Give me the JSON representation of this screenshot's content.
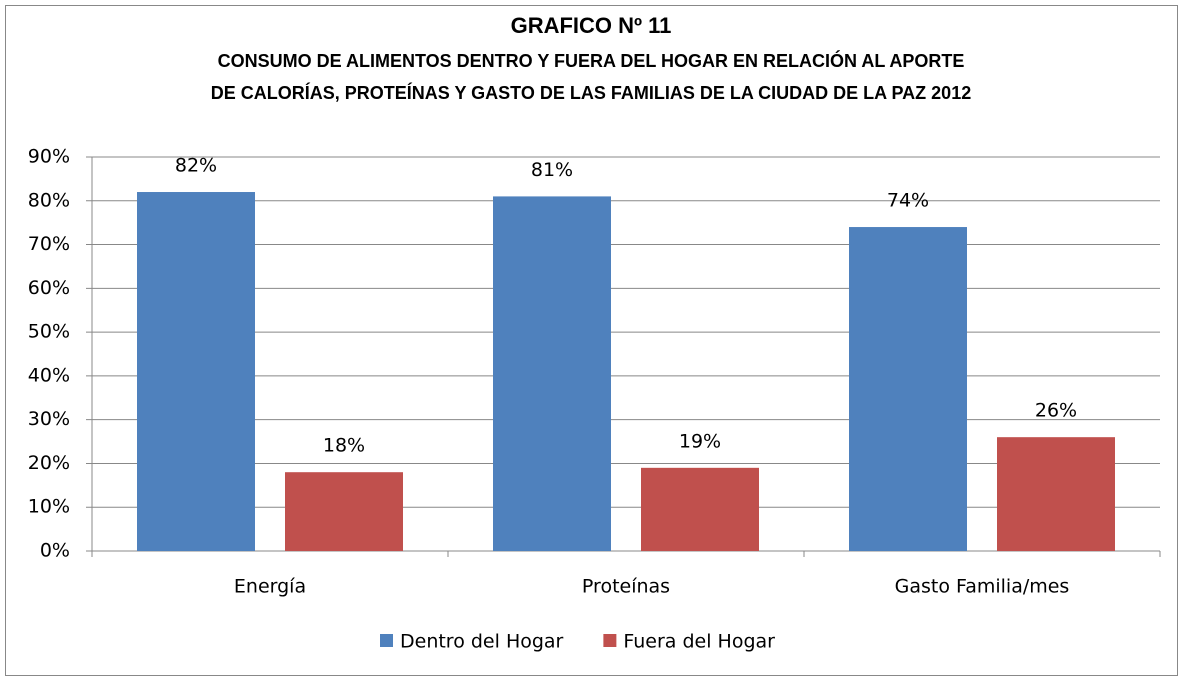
{
  "chart_data": {
    "type": "bar",
    "title": "GRAFICO Nº 11",
    "subtitle": [
      "CONSUMO DE ALIMENTOS DENTRO Y FUERA DEL HOGAR EN RELACIÓN AL APORTE",
      "DE CALORÍAS, PROTEÍNAS Y GASTO DE LAS FAMILIAS DE LA CIUDAD DE LA PAZ 2012"
    ],
    "categories": [
      "Energía",
      "Proteínas",
      "Gasto Familia/mes"
    ],
    "series": [
      {
        "name": "Dentro del Hogar",
        "color": "#4f81bd",
        "values": [
          82,
          81,
          74
        ],
        "value_labels": [
          "82%",
          "81%",
          "74%"
        ]
      },
      {
        "name": "Fuera del Hogar",
        "color": "#c0504d",
        "values": [
          18,
          19,
          26
        ],
        "value_labels": [
          "18%",
          "19%",
          "26%"
        ]
      }
    ],
    "ylim": [
      0,
      90
    ],
    "yticks": [
      {
        "value": 0,
        "label": "0%"
      },
      {
        "value": 10,
        "label": "10%"
      },
      {
        "value": 20,
        "label": "20%"
      },
      {
        "value": 30,
        "label": "30%"
      },
      {
        "value": 40,
        "label": "40%"
      },
      {
        "value": 50,
        "label": "50%"
      },
      {
        "value": 60,
        "label": "60%"
      },
      {
        "value": 70,
        "label": "70%"
      },
      {
        "value": 80,
        "label": "80%"
      },
      {
        "value": 90,
        "label": "90%"
      }
    ],
    "grid": true,
    "legend": "bottom"
  }
}
